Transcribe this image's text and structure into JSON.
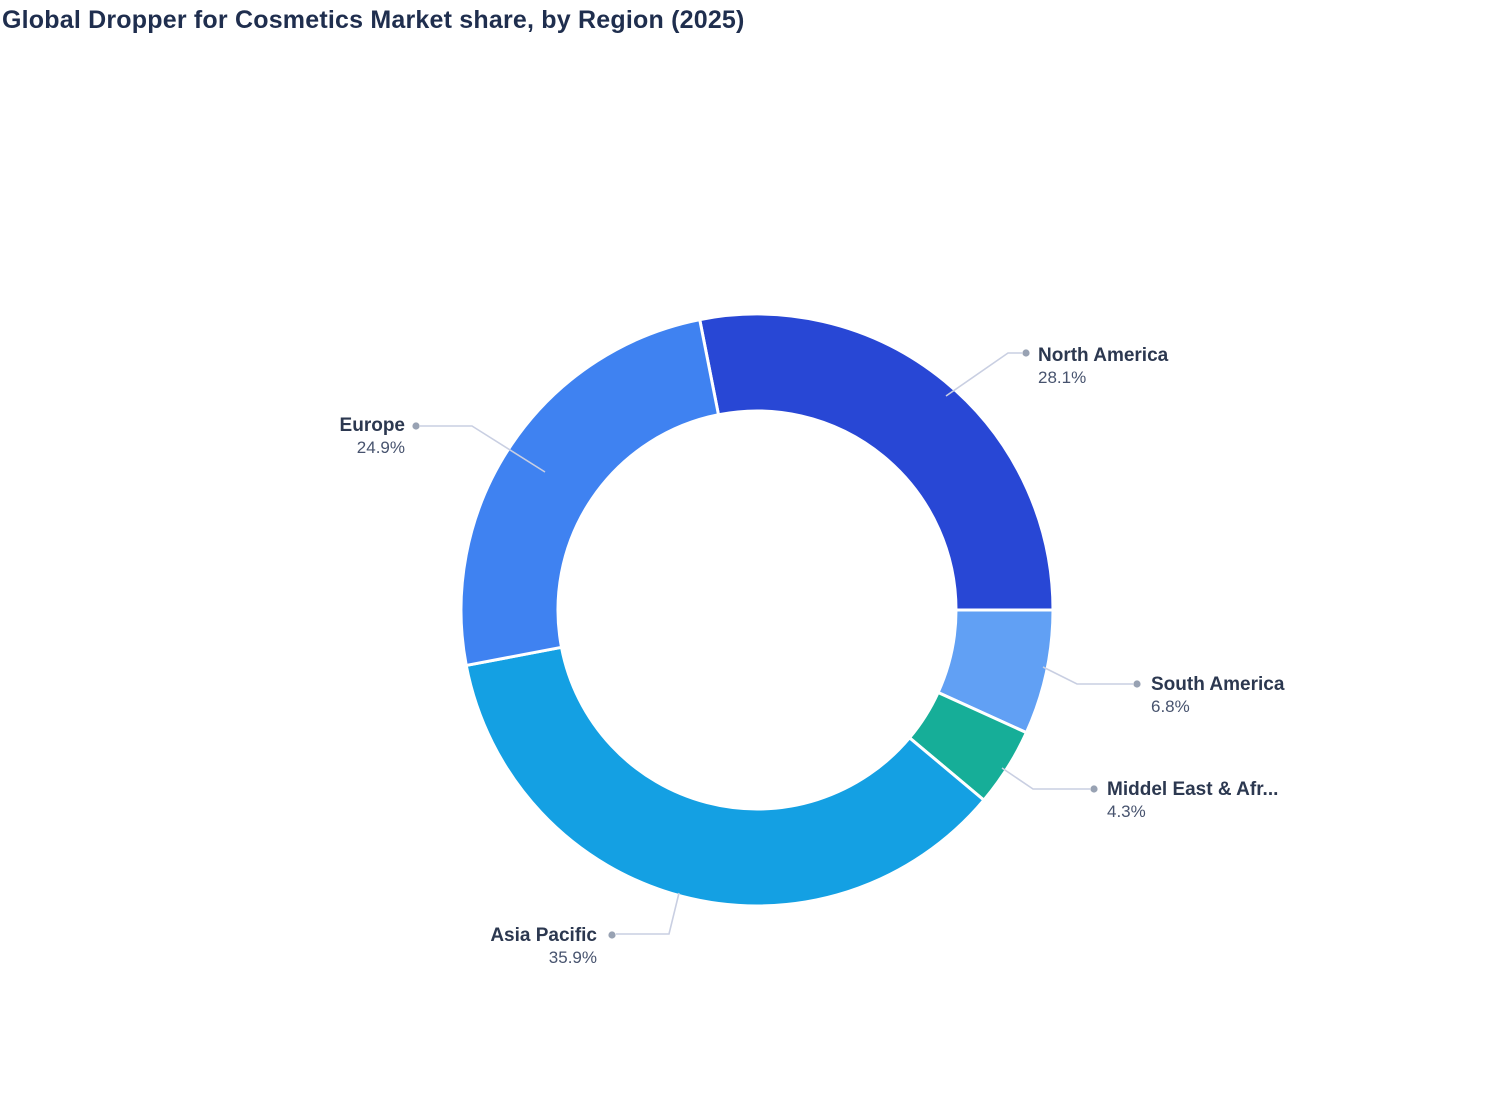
{
  "header": {
    "title": "Global Dropper for Cosmetics Market share, by Region (2025)"
  },
  "chart_data": {
    "type": "pie",
    "subtype": "donut",
    "title": "Global Dropper for Cosmetics Market share, by Region (2025)",
    "unit": "%",
    "direction": "clockwise",
    "start_angle_deg": -11.16,
    "inner_radius_ratio": 0.67,
    "legend_position": "none",
    "total": 100,
    "slices": [
      {
        "label": "North America",
        "value": 28.1,
        "value_label": "28.1%",
        "color": "#2847d5"
      },
      {
        "label": "South America",
        "value": 6.8,
        "value_label": "6.8%",
        "color": "#61a0f4"
      },
      {
        "label": "Middel East & Afr...",
        "value": 4.3,
        "value_label": "4.3%",
        "color": "#16ae98"
      },
      {
        "label": "Asia Pacific",
        "value": 35.9,
        "value_label": "35.9%",
        "color": "#14a0e3"
      },
      {
        "label": "Europe",
        "value": 24.9,
        "value_label": "24.9%",
        "color": "#3f82f1"
      }
    ],
    "style_colors": {
      "title_text": "#1f2e4e",
      "label_text": "#2c3850",
      "value_text": "#47536e",
      "leader_line": "#c9cfe2",
      "leader_dot": "#98a2b3",
      "slice_gap": "#ffffff"
    }
  }
}
